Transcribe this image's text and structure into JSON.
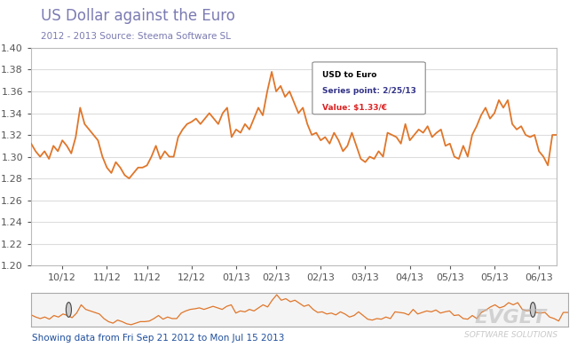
{
  "chart_data": {
    "type": "line",
    "title": "US Dollar against the Euro",
    "subtitle": "2012 - 2013 Source: Steema Software SL",
    "color": "#e0762a",
    "grid": true,
    "categories": [
      null,
      null,
      null,
      null,
      null,
      null,
      null,
      "10/12",
      null,
      null,
      null,
      null,
      null,
      null,
      null,
      null,
      null,
      "11/12",
      null,
      null,
      null,
      null,
      null,
      null,
      null,
      null,
      "11/12",
      null,
      null,
      null,
      null,
      null,
      null,
      null,
      null,
      null,
      "12/12",
      null,
      null,
      null,
      null,
      null,
      null,
      null,
      null,
      null,
      "01/13",
      null,
      null,
      null,
      null,
      null,
      null,
      null,
      null,
      "02/13",
      null,
      null,
      null,
      null,
      null,
      null,
      null,
      null,
      null,
      "02/13",
      null,
      null,
      null,
      null,
      null,
      null,
      null,
      null,
      null,
      "03/13",
      null,
      null,
      null,
      null,
      null,
      null,
      null,
      null,
      null,
      "04/13",
      null,
      null,
      null,
      null,
      null,
      null,
      null,
      null,
      "05/13",
      null,
      null,
      null,
      null,
      null,
      null,
      null,
      null,
      null,
      "05/13",
      null,
      null,
      null,
      null,
      null,
      null,
      null,
      null,
      null,
      "06/13",
      null,
      null,
      null,
      null
    ],
    "values": [
      1.312,
      1.305,
      1.3,
      1.305,
      1.298,
      1.31,
      1.305,
      1.315,
      1.31,
      1.303,
      1.318,
      1.345,
      1.33,
      1.325,
      1.32,
      1.315,
      1.3,
      1.29,
      1.285,
      1.295,
      1.29,
      1.283,
      1.28,
      1.285,
      1.29,
      1.29,
      1.292,
      1.3,
      1.31,
      1.298,
      1.305,
      1.3,
      1.3,
      1.318,
      1.325,
      1.33,
      1.332,
      1.335,
      1.33,
      1.335,
      1.34,
      1.335,
      1.33,
      1.34,
      1.345,
      1.318,
      1.325,
      1.322,
      1.33,
      1.325,
      1.335,
      1.345,
      1.338,
      1.36,
      1.378,
      1.36,
      1.365,
      1.355,
      1.36,
      1.35,
      1.34,
      1.345,
      1.33,
      1.32,
      1.322,
      1.315,
      1.318,
      1.312,
      1.322,
      1.315,
      1.305,
      1.31,
      1.322,
      1.31,
      1.298,
      1.295,
      1.3,
      1.298,
      1.305,
      1.3,
      1.322,
      1.32,
      1.318,
      1.312,
      1.33,
      1.315,
      1.32,
      1.325,
      1.322,
      1.328,
      1.318,
      1.322,
      1.325,
      1.31,
      1.312,
      1.3,
      1.298,
      1.31,
      1.3,
      1.32,
      1.328,
      1.338,
      1.345,
      1.335,
      1.34,
      1.352,
      1.345,
      1.352,
      1.33,
      1.325,
      1.328,
      1.32,
      1.318,
      1.32,
      1.305,
      1.3,
      1.292,
      1.32,
      1.32
    ],
    "ylim": [
      1.2,
      1.4
    ],
    "yticks": [
      {
        "value": 1.2,
        "label": "1.20"
      },
      1.22,
      1.24,
      1.26,
      1.28,
      {
        "value": 1.3,
        "label": "1.30"
      },
      1.32,
      1.34,
      1.36,
      1.38,
      {
        "value": 1.4,
        "label": "1.40"
      }
    ],
    "annotations": [
      "USD to Euro",
      "Series point: 2/25/13",
      "Value: $1.33/€"
    ],
    "footer": "Showing data from Fri Sep 21 2012 to Mon Jul 15 2013",
    "watermark": [
      "EVGET",
      "SOFTWARE SOLUTIONS"
    ]
  }
}
